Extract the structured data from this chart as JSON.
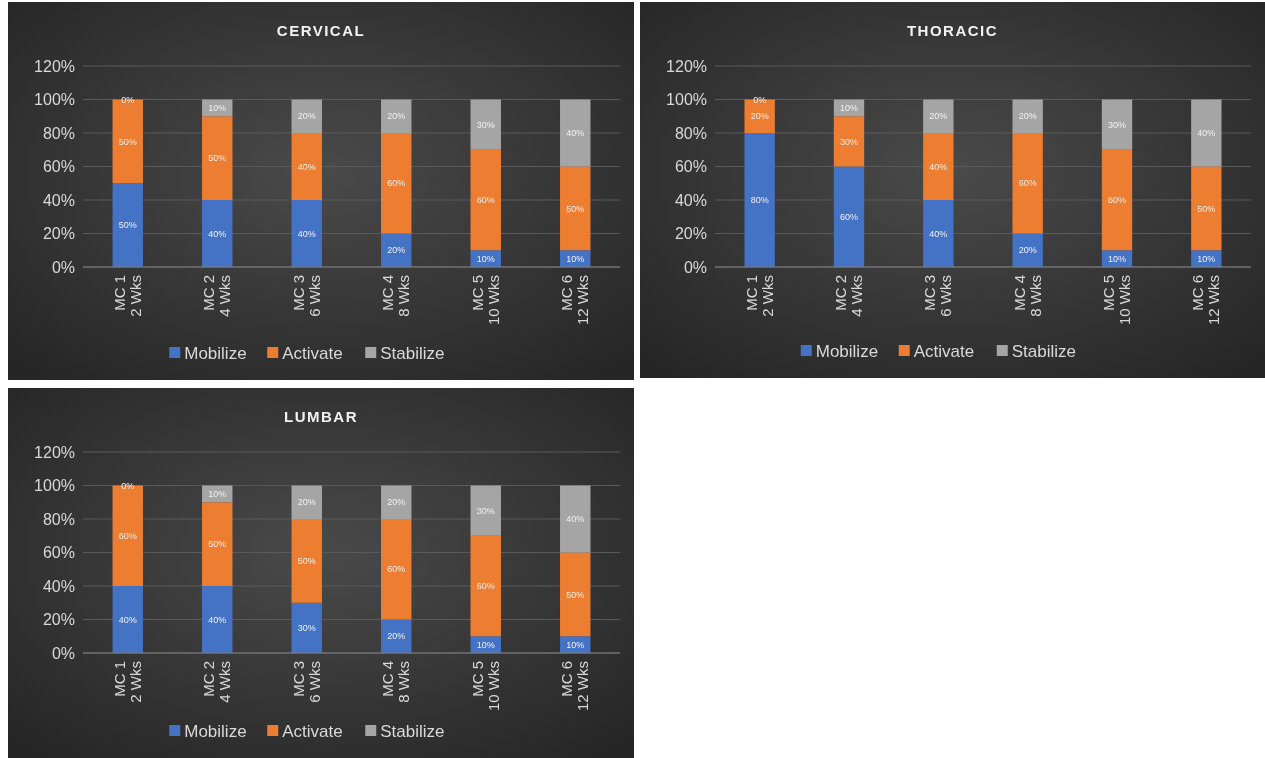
{
  "chart_data": [
    {
      "type": "bar",
      "stacked": true,
      "title": "CERVICAL",
      "categories": [
        "MC 1\n2 Wks",
        "MC 2\n4 Wks",
        "MC 3\n6 Wks",
        "MC 4\n8 Wks",
        "MC 5\n10 Wks",
        "MC 6\n12 Wks"
      ],
      "ylim": [
        0,
        120
      ],
      "yticks": [
        {
          "value": 0,
          "label": "0%"
        },
        {
          "value": 20,
          "label": "20%"
        },
        {
          "value": 40,
          "label": "40%"
        },
        {
          "value": 60,
          "label": "60%"
        },
        {
          "value": 80,
          "label": "80%"
        },
        {
          "value": 100,
          "label": "100%"
        },
        {
          "value": 120,
          "label": "120%"
        }
      ],
      "grid": "y",
      "legend": "bottom",
      "series": [
        {
          "name": "Mobilize",
          "color": "#4472c4",
          "values": [
            50,
            40,
            40,
            20,
            10,
            10
          ],
          "value_labels": [
            "50%",
            "40%",
            "40%",
            "20%",
            "10%",
            "10%"
          ]
        },
        {
          "name": "Activate",
          "color": "#ed7d31",
          "values": [
            50,
            50,
            40,
            60,
            60,
            50
          ],
          "value_labels": [
            "50%",
            "50%",
            "40%",
            "60%",
            "60%",
            "50%"
          ]
        },
        {
          "name": "Stabilize",
          "color": "#a5a5a5",
          "values": [
            0,
            10,
            20,
            20,
            30,
            40
          ],
          "value_labels": [
            "0%",
            "10%",
            "20%",
            "20%",
            "30%",
            "40%"
          ]
        }
      ]
    },
    {
      "type": "bar",
      "stacked": true,
      "title": "THORACIC",
      "categories": [
        "MC 1\n2 Wks",
        "MC 2\n4 Wks",
        "MC 3\n6 Wks",
        "MC 4\n8 Wks",
        "MC 5\n10 Wks",
        "MC 6\n12 Wks"
      ],
      "ylim": [
        0,
        120
      ],
      "yticks": [
        {
          "value": 0,
          "label": "0%"
        },
        {
          "value": 20,
          "label": "20%"
        },
        {
          "value": 40,
          "label": "40%"
        },
        {
          "value": 60,
          "label": "60%"
        },
        {
          "value": 80,
          "label": "80%"
        },
        {
          "value": 100,
          "label": "100%"
        },
        {
          "value": 120,
          "label": "120%"
        }
      ],
      "grid": "y",
      "legend": "bottom",
      "series": [
        {
          "name": "Mobilize",
          "color": "#4472c4",
          "values": [
            80,
            60,
            40,
            20,
            10,
            10
          ],
          "value_labels": [
            "80%",
            "60%",
            "40%",
            "20%",
            "10%",
            "10%"
          ]
        },
        {
          "name": "Activate",
          "color": "#ed7d31",
          "values": [
            20,
            30,
            40,
            60,
            60,
            50
          ],
          "value_labels": [
            "20%",
            "30%",
            "40%",
            "60%",
            "60%",
            "50%"
          ]
        },
        {
          "name": "Stabilize",
          "color": "#a5a5a5",
          "values": [
            0,
            10,
            20,
            20,
            30,
            40
          ],
          "value_labels": [
            "0%",
            "10%",
            "20%",
            "20%",
            "30%",
            "40%"
          ]
        }
      ]
    },
    {
      "type": "bar",
      "stacked": true,
      "title": "LUMBAR",
      "categories": [
        "MC 1\n2 Wks",
        "MC 2\n4 Wks",
        "MC 3\n6 Wks",
        "MC 4\n8 Wks",
        "MC 5\n10 Wks",
        "MC 6\n12 Wks"
      ],
      "ylim": [
        0,
        120
      ],
      "yticks": [
        {
          "value": 0,
          "label": "0%"
        },
        {
          "value": 20,
          "label": "20%"
        },
        {
          "value": 40,
          "label": "40%"
        },
        {
          "value": 60,
          "label": "60%"
        },
        {
          "value": 80,
          "label": "80%"
        },
        {
          "value": 100,
          "label": "100%"
        },
        {
          "value": 120,
          "label": "120%"
        }
      ],
      "grid": "y",
      "legend": "bottom",
      "series": [
        {
          "name": "Mobilize",
          "color": "#4472c4",
          "values": [
            40,
            40,
            30,
            20,
            10,
            10
          ],
          "value_labels": [
            "40%",
            "40%",
            "30%",
            "20%",
            "10%",
            "10%"
          ]
        },
        {
          "name": "Activate",
          "color": "#ed7d31",
          "values": [
            60,
            50,
            50,
            60,
            60,
            50
          ],
          "value_labels": [
            "60%",
            "50%",
            "50%",
            "60%",
            "60%",
            "50%"
          ]
        },
        {
          "name": "Stabilize",
          "color": "#a5a5a5",
          "values": [
            0,
            10,
            20,
            20,
            30,
            40
          ],
          "value_labels": [
            "0%",
            "10%",
            "20%",
            "20%",
            "30%",
            "40%"
          ]
        }
      ]
    }
  ]
}
